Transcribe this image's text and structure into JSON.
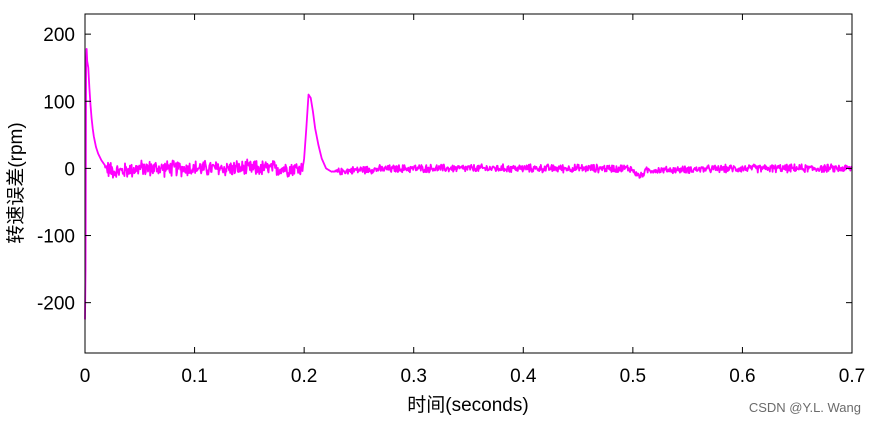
{
  "chart_data": {
    "type": "line",
    "xlabel": "时间(seconds)",
    "ylabel": "转速误差(rpm)",
    "xlim": [
      0,
      0.7
    ],
    "ylim": [
      -275,
      230
    ],
    "xticks": [
      0,
      0.1,
      0.2,
      0.3,
      0.4,
      0.5,
      0.6,
      0.7
    ],
    "xtick_labels": [
      "0",
      "0.1",
      "0.2",
      "0.3",
      "0.4",
      "0.5",
      "0.6",
      "0.7"
    ],
    "yticks": [
      200,
      100,
      0,
      -100,
      -200
    ],
    "ytick_labels": [
      "200",
      "100",
      "0",
      "-100",
      "-200"
    ],
    "grid": false,
    "series": [
      {
        "color": "#ff00ff",
        "x": [
          0,
          0.0005,
          0.001,
          0.0015,
          0.002,
          0.003,
          0.004,
          0.005,
          0.006,
          0.007,
          0.008,
          0.009,
          0.01,
          0.012,
          0.015,
          0.018,
          0.02,
          0.03,
          0.05,
          0.1,
          0.15,
          0.198,
          0.2,
          0.202,
          0.204,
          0.206,
          0.208,
          0.21,
          0.213,
          0.216,
          0.22,
          0.225,
          0.23,
          0.25,
          0.3,
          0.4,
          0.498,
          0.503,
          0.507,
          0.512,
          0.6,
          0.7
        ],
        "y": [
          -225,
          -150,
          150,
          178,
          160,
          150,
          120,
          95,
          75,
          60,
          48,
          40,
          32,
          22,
          12,
          5,
          0,
          -5,
          0,
          0,
          0,
          0,
          15,
          60,
          110,
          105,
          85,
          60,
          35,
          15,
          0,
          -5,
          -5,
          -2,
          0,
          0,
          0,
          -8,
          -12,
          -3,
          0,
          0
        ],
        "noise": [
          0,
          0,
          0,
          0,
          0,
          0,
          0,
          0,
          0,
          0,
          0,
          0,
          0,
          0,
          0,
          0,
          10,
          10,
          10,
          10,
          10,
          10,
          0,
          0,
          0,
          0,
          0,
          0,
          0,
          0,
          0,
          0,
          4,
          5,
          5,
          5,
          5,
          4,
          4,
          4,
          5,
          5
        ]
      }
    ]
  },
  "watermark": "CSDN @Y.L. Wang"
}
